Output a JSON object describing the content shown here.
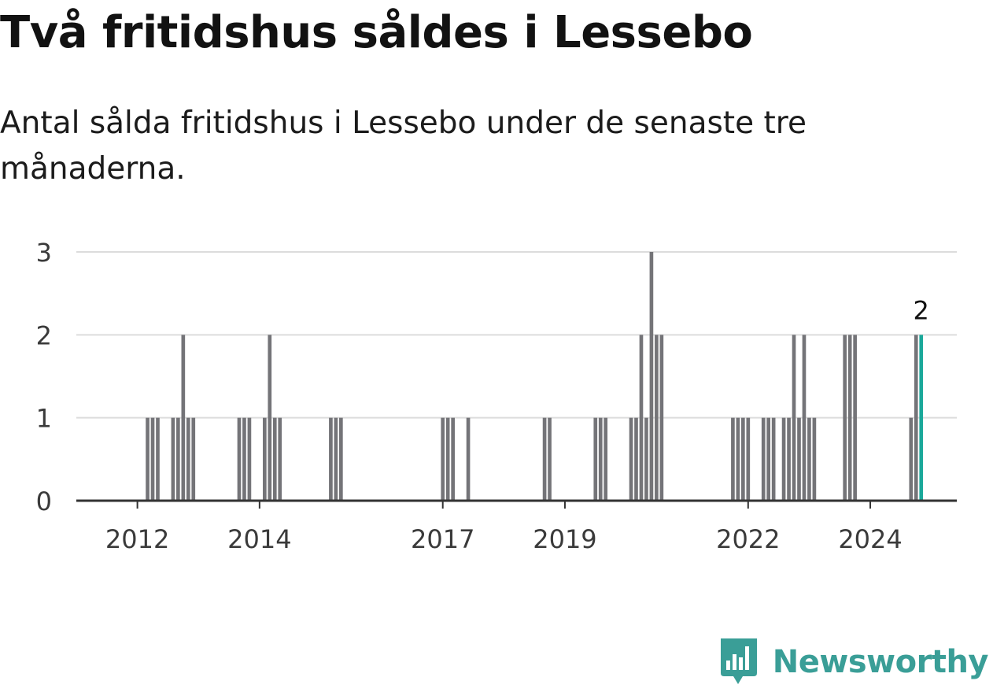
{
  "chart_data": {
    "type": "bar",
    "title": "Två fritidshus såldes i Lessebo",
    "subtitle": "Antal sålda fritidshus i Lessebo under de senaste tre månaderna.",
    "xlabel": "",
    "ylabel": "",
    "x_range": [
      "2011-01",
      "2025-06"
    ],
    "ylim": [
      0,
      3
    ],
    "y_ticks": [
      0,
      1,
      2,
      3
    ],
    "x_ticks": [
      "2012",
      "2014",
      "2017",
      "2019",
      "2022",
      "2024"
    ],
    "grid": true,
    "colors": {
      "bar": "#747478",
      "highlight": "#1aa89a",
      "grid": "#dcdcdc",
      "axis": "#333333"
    },
    "highlight_label": "2",
    "x": [
      "2012-03",
      "2012-04",
      "2012-05",
      "2012-08",
      "2012-09",
      "2012-10",
      "2012-11",
      "2012-12",
      "2013-09",
      "2013-10",
      "2013-11",
      "2014-02",
      "2014-03",
      "2014-04",
      "2014-05",
      "2015-03",
      "2015-04",
      "2015-05",
      "2017-01",
      "2017-02",
      "2017-03",
      "2017-06",
      "2018-09",
      "2018-10",
      "2019-07",
      "2019-08",
      "2019-09",
      "2020-02",
      "2020-03",
      "2020-04",
      "2020-05",
      "2020-06",
      "2020-07",
      "2020-08",
      "2021-10",
      "2021-11",
      "2021-12",
      "2022-01",
      "2022-04",
      "2022-05",
      "2022-06",
      "2022-08",
      "2022-09",
      "2022-10",
      "2022-11",
      "2022-12",
      "2023-01",
      "2023-02",
      "2023-08",
      "2023-09",
      "2023-10",
      "2024-09",
      "2024-10",
      "2024-11"
    ],
    "values": [
      1,
      1,
      1,
      1,
      1,
      2,
      1,
      1,
      1,
      1,
      1,
      1,
      2,
      1,
      1,
      1,
      1,
      1,
      1,
      1,
      1,
      1,
      1,
      1,
      1,
      1,
      1,
      1,
      1,
      2,
      1,
      3,
      2,
      2,
      1,
      1,
      1,
      1,
      1,
      1,
      1,
      1,
      1,
      2,
      1,
      2,
      1,
      1,
      2,
      2,
      2,
      1,
      2,
      2
    ]
  },
  "brand": {
    "name": "Newsworthy",
    "color": "#3a9e97",
    "icon": "bar-chart-icon"
  }
}
